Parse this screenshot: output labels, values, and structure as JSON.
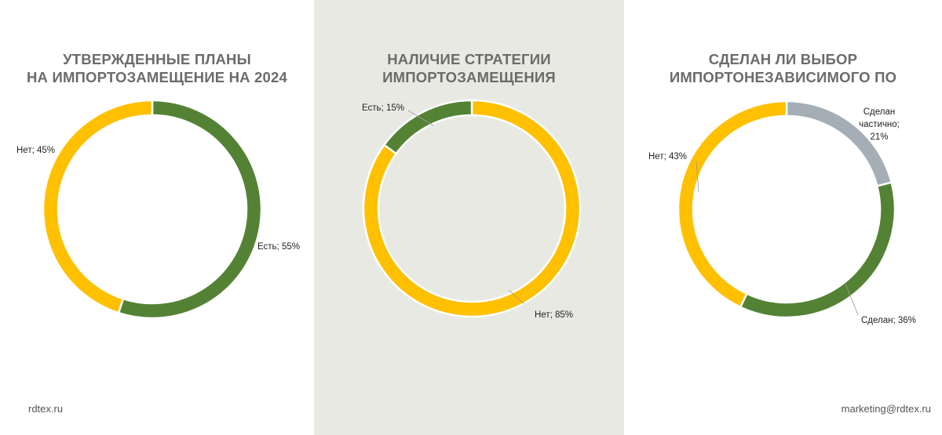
{
  "colors": {
    "yes": "#548235",
    "no": "#ffc000",
    "partial": "#a5adb7",
    "leader": "#9a9a9a"
  },
  "footer": {
    "left": "rdtex.ru",
    "right": "marketing@rdtex.ru"
  },
  "chart_data": [
    {
      "type": "pie",
      "title_lines": [
        "УТВЕРЖДЕННЫЕ ПЛАНЫ",
        "НА ИМПОРТОЗАМЕЩЕНИЕ НА 2024"
      ],
      "slices": [
        {
          "label": "Есть; 55%",
          "value": 55,
          "color": "#548235"
        },
        {
          "label": "Нет; 45%",
          "value": 45,
          "color": "#ffc000"
        }
      ]
    },
    {
      "type": "pie",
      "title_lines": [
        "НАЛИЧИЕ СТРАТЕГИИ",
        "ИМПОРТОЗАМЕЩЕНИЯ"
      ],
      "slices": [
        {
          "label": "Нет; 85%",
          "value": 85,
          "color": "#ffc000"
        },
        {
          "label": "Есть; 15%",
          "value": 15,
          "color": "#548235"
        }
      ]
    },
    {
      "type": "pie",
      "title_lines": [
        "СДЕЛАН ЛИ ВЫБОР",
        "ИМПОРТОНЕЗАВИСИМОГО ПО"
      ],
      "slices": [
        {
          "label": "Сделан частично; 21%",
          "label_lines": [
            "Сделан",
            "частично;",
            "21%"
          ],
          "value": 21,
          "color": "#a5adb7"
        },
        {
          "label": "Сделан; 36%",
          "value": 36,
          "color": "#548235"
        },
        {
          "label": "Нет; 43%",
          "value": 43,
          "color": "#ffc000"
        }
      ]
    }
  ]
}
